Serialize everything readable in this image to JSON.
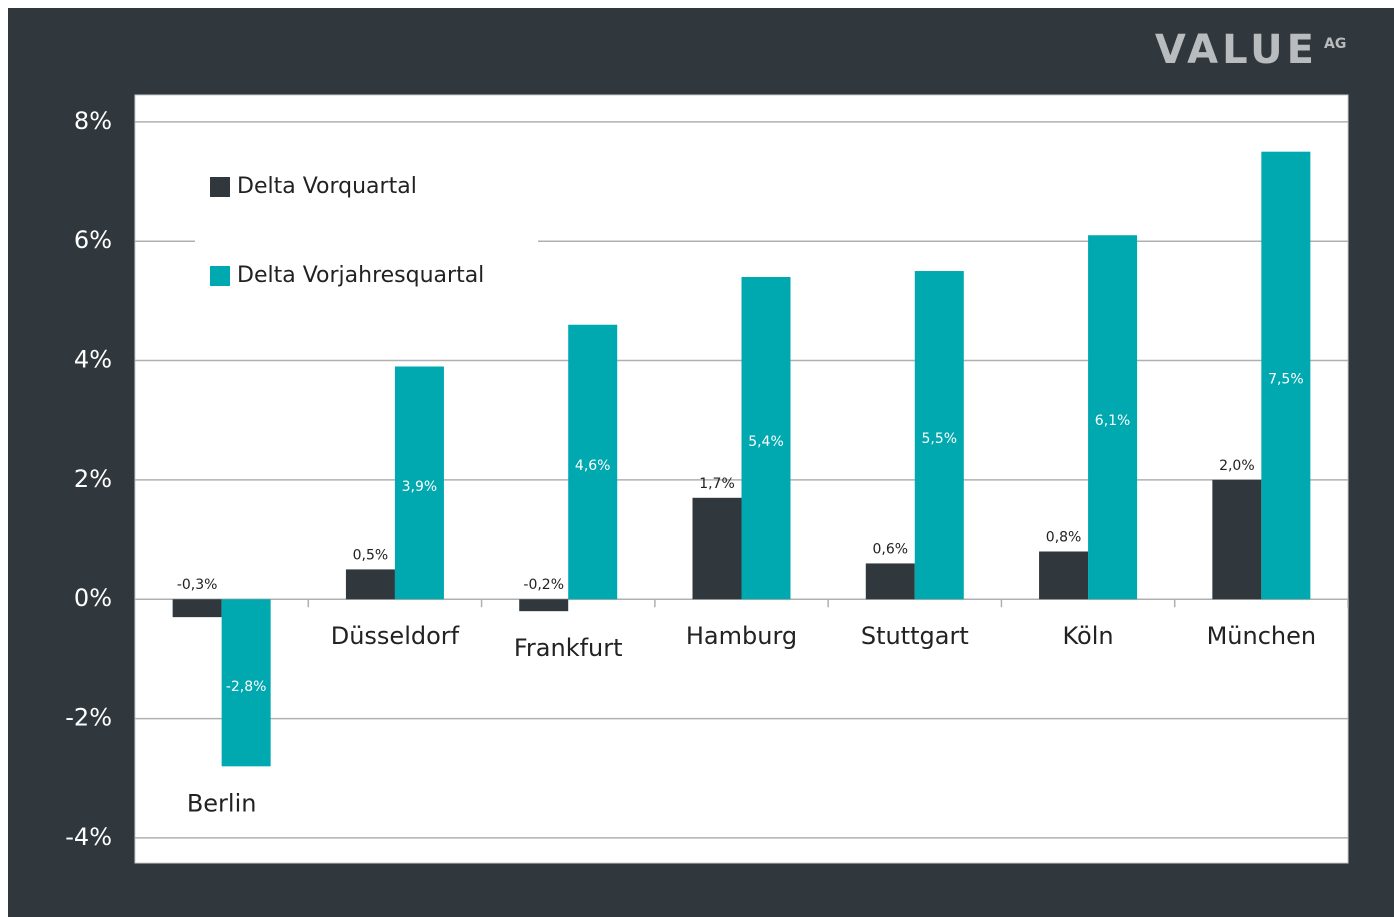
{
  "chart_data": {
    "type": "bar",
    "logo": "VALUE",
    "logo_suffix": "AG",
    "categories": [
      "Berlin",
      "Düsseldorf",
      "Frankfurt",
      "Hamburg",
      "Stuttgart",
      "Köln",
      "München"
    ],
    "series": [
      {
        "name": "Delta Vorquartal",
        "color": "#30373d",
        "values": [
          -0.3,
          0.5,
          -0.2,
          1.7,
          0.6,
          0.8,
          2.0
        ],
        "value_labels": [
          "-0,3%",
          "0,5%",
          "-0,2%",
          "1,7%",
          "0,6%",
          "0,8%",
          "2,0%"
        ]
      },
      {
        "name": "Delta Vorjahresquartal",
        "color": "#00a8b0",
        "values": [
          -2.8,
          3.9,
          4.6,
          5.4,
          5.5,
          6.1,
          7.5
        ],
        "value_labels": [
          "-2,8%",
          "3,9%",
          "4,6%",
          "5,4%",
          "5,5%",
          "6,1%",
          "7,5%"
        ]
      }
    ],
    "ylim": [
      -4.42,
      8.45
    ],
    "yticks": [
      {
        "value": -4,
        "label": "-4%"
      },
      {
        "value": -2,
        "label": "-2%"
      },
      {
        "value": 0,
        "label": "0%"
      },
      {
        "value": 2,
        "label": "2%"
      },
      {
        "value": 4,
        "label": "4%"
      },
      {
        "value": 6,
        "label": "6%"
      },
      {
        "value": 8,
        "label": "8%"
      }
    ],
    "grid": true,
    "legend": "top-left"
  }
}
